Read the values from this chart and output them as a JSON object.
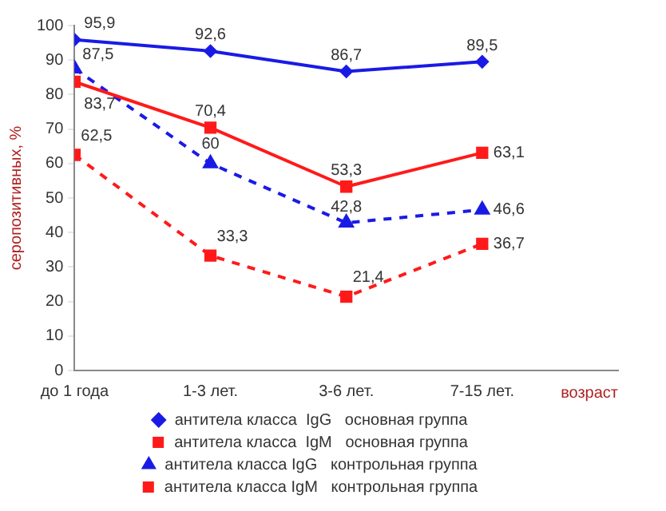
{
  "chart_data": {
    "type": "line",
    "xlabel": "возраст",
    "ylabel": "серопозитивных, %",
    "categories": [
      "до 1 года",
      "1-3 лет.",
      "3-6 лет.",
      "7-15 лет."
    ],
    "ylim": [
      0,
      100
    ],
    "yticks": [
      0,
      10,
      20,
      30,
      40,
      50,
      60,
      70,
      80,
      90,
      100
    ],
    "grid": false,
    "legend": "bottom",
    "series": [
      {
        "name": "антитела класса  IgG   основная группа",
        "color": "#1a1ae6",
        "marker": "diamond",
        "line_style": "solid",
        "values": [
          95.9,
          92.6,
          86.7,
          89.5
        ],
        "value_labels": [
          "95,9",
          "92,6",
          "86,7",
          "89,5"
        ]
      },
      {
        "name": "антитела класса  IgM   основная группа",
        "color": "#ff1a1a",
        "marker": "square",
        "line_style": "solid",
        "values": [
          83.7,
          70.4,
          53.3,
          63.1
        ],
        "value_labels": [
          "83,7",
          "70,4",
          "53,3",
          "63,1"
        ]
      },
      {
        "name": "антитела класса IgG   контрольная группа",
        "color": "#1a1ae6",
        "marker": "triangle",
        "line_style": "dashed",
        "values": [
          87.5,
          60,
          42.8,
          46.6
        ],
        "value_labels": [
          "87,5",
          "60",
          "42,8",
          "46,6"
        ]
      },
      {
        "name": "антитела класса IgM   контрольная группа",
        "color": "#ff1a1a",
        "marker": "square",
        "line_style": "dashed",
        "values": [
          62.5,
          33.3,
          21.4,
          36.7
        ],
        "value_labels": [
          "62,5",
          "33,3",
          "21,4",
          "36,7"
        ]
      }
    ]
  }
}
